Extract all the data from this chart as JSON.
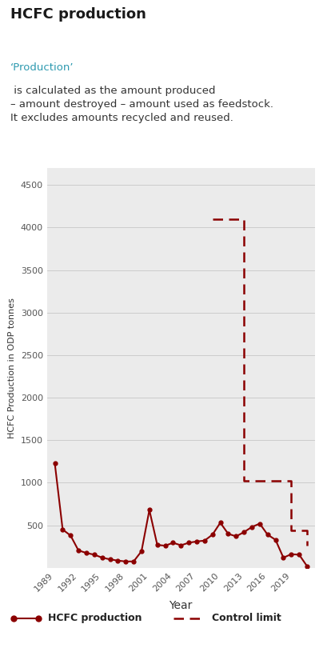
{
  "title": "HCFC production",
  "subtitle_colored": "‘Production’",
  "subtitle_rest": " is calculated as the amount produced – amount destroyed – amount used as feedstock. It excludes amounts recycled and reused.",
  "hcfc_years": [
    1989,
    1990,
    1991,
    1992,
    1993,
    1994,
    1995,
    1996,
    1997,
    1998,
    1999,
    2000,
    2001,
    2002,
    2003,
    2004,
    2005,
    2006,
    2007,
    2008,
    2009,
    2010,
    2011,
    2012,
    2013,
    2014,
    2015,
    2016,
    2017,
    2018,
    2019,
    2020,
    2021
  ],
  "hcfc_values": [
    1230,
    450,
    380,
    205,
    175,
    155,
    120,
    100,
    85,
    75,
    75,
    195,
    680,
    270,
    260,
    295,
    265,
    295,
    310,
    320,
    390,
    530,
    400,
    370,
    420,
    480,
    520,
    390,
    330,
    120,
    160,
    155,
    20
  ],
  "control_years": [
    2009,
    2010,
    2013,
    2013,
    2015,
    2015,
    2019,
    2019,
    2021,
    2021
  ],
  "control_values": [
    4100,
    4100,
    4100,
    1020,
    1020,
    1020,
    1020,
    440,
    440,
    260
  ],
  "line_color": "#8b0000",
  "control_color": "#8b0000",
  "xlabel": "Year",
  "ylabel": "HCFC Production in ODP tonnes",
  "ylim": [
    0,
    4700
  ],
  "yticks": [
    0,
    500,
    1000,
    1500,
    2000,
    2500,
    3000,
    3500,
    4000,
    4500
  ],
  "xtick_years": [
    1989,
    1992,
    1995,
    1998,
    2001,
    2004,
    2007,
    2010,
    2013,
    2016,
    2019
  ],
  "bg_color": "#ebebeb",
  "legend_label_production": "HCFC production",
  "legend_label_control": "Control limit"
}
